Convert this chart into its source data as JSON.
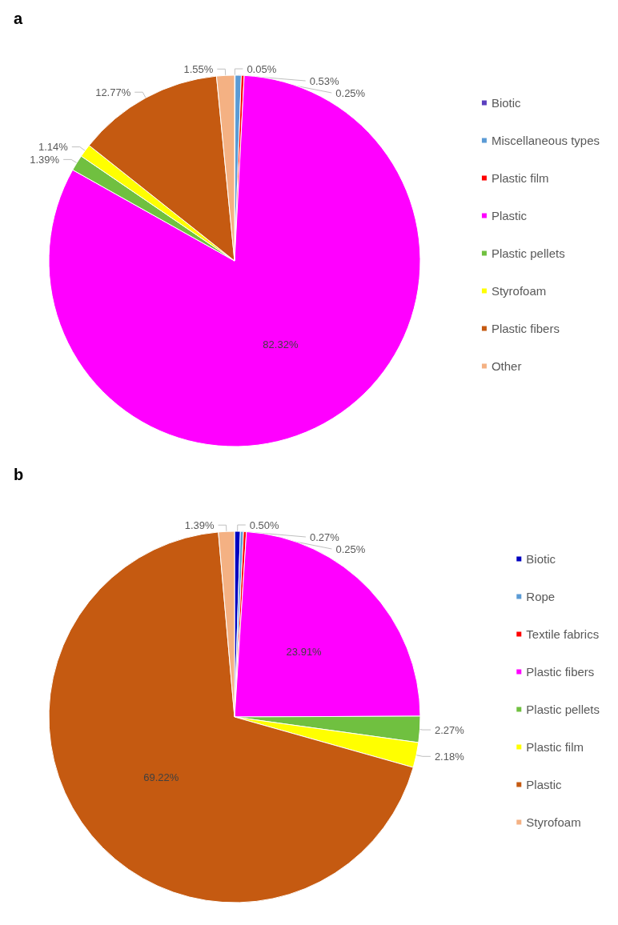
{
  "chart_data": [
    {
      "type": "pie",
      "title": "a",
      "categories": [
        "Biotic",
        "Miscellaneous types",
        "Plastic film",
        "Plastic",
        "Plastic pellets",
        "Styrofoam",
        "Plastic fibers",
        "Other"
      ],
      "values": [
        0.05,
        0.53,
        0.25,
        82.32,
        1.39,
        1.14,
        12.77,
        1.55
      ],
      "value_labels": [
        "0.05%",
        "0.53%",
        "0.25%",
        "82.32%",
        "1.39%",
        "1.14%",
        "12.77%",
        "1.55%"
      ],
      "colors": [
        "#5b3fbf",
        "#5b9bd5",
        "#ff0000",
        "#ff00ff",
        "#70c040",
        "#ffff00",
        "#c55a11",
        "#f4b183"
      ],
      "legend": "right"
    },
    {
      "type": "pie",
      "title": "b",
      "categories": [
        "Biotic",
        "Rope",
        "Textile fabrics",
        "Plastic fibers",
        "Plastic pellets",
        "Plastic film",
        "Plastic",
        "Styrofoam"
      ],
      "values": [
        0.5,
        0.27,
        0.25,
        23.91,
        2.27,
        2.18,
        69.22,
        1.39
      ],
      "value_labels": [
        "0.50%",
        "0.27%",
        "0.25%",
        "23.91%",
        "2.27%",
        "2.18%",
        "69.22%",
        "1.39%"
      ],
      "colors": [
        "#0000c0",
        "#5b9bd5",
        "#ff0000",
        "#ff00ff",
        "#70c040",
        "#ffff00",
        "#c55a11",
        "#f4b183"
      ],
      "legend": "right"
    }
  ]
}
